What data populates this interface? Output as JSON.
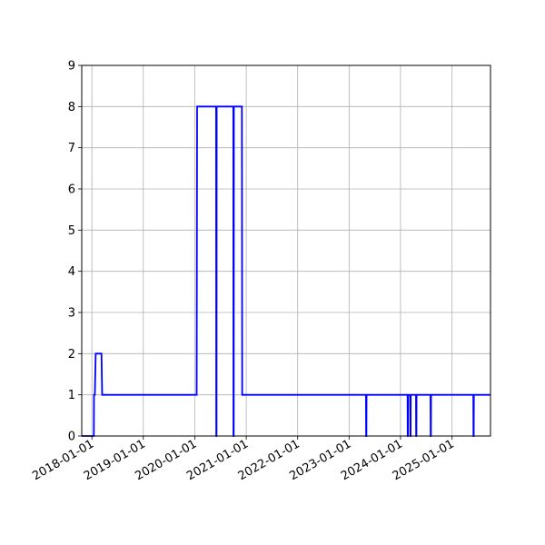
{
  "chart_data": {
    "type": "line",
    "title": "",
    "xlabel": "",
    "ylabel": "",
    "x_tick_labels": [
      "2018-01-01",
      "2019-01-01",
      "2020-01-01",
      "2021-01-01",
      "2022-01-01",
      "2023-01-01",
      "2024-01-01",
      "2025-01-01"
    ],
    "y_tick_labels": [
      "0",
      "1",
      "2",
      "3",
      "4",
      "5",
      "6",
      "7",
      "8",
      "9"
    ],
    "xlim": [
      "2017-10-21",
      "2025-10-01"
    ],
    "ylim": [
      0,
      9
    ],
    "grid": true,
    "legend": "none",
    "colors": {
      "series": "#0000ff",
      "grid": "#b0b0b0",
      "axes": "#000000"
    },
    "series": [
      {
        "x": [
          "2017-10-21",
          "2018-01-15",
          "2018-01-16",
          "2018-01-20",
          "2018-01-22",
          "2018-01-28",
          "2018-01-30",
          "2018-02-10",
          "2018-03-10",
          "2018-03-15",
          "2020-01-15",
          "2020-01-18",
          "2020-06-01",
          "2020-06-02",
          "2020-06-04",
          "2020-06-05",
          "2020-10-01",
          "2020-10-02",
          "2020-10-04",
          "2020-10-05",
          "2020-12-01",
          "2020-12-03",
          "2023-05-01",
          "2023-05-02",
          "2023-05-04",
          "2023-05-05",
          "2024-02-20",
          "2024-02-21",
          "2024-02-23",
          "2024-02-24",
          "2024-03-10",
          "2024-03-11",
          "2024-03-13",
          "2024-03-14",
          "2024-04-20",
          "2024-04-21",
          "2024-04-23",
          "2024-04-24",
          "2024-08-01",
          "2024-08-02",
          "2024-08-04",
          "2024-08-05",
          "2025-06-01",
          "2025-06-02",
          "2025-06-04",
          "2025-06-05",
          "2025-10-01"
        ],
        "y": [
          0,
          0,
          1,
          1,
          1,
          2,
          2,
          2,
          2,
          1,
          1,
          8,
          8,
          0,
          0,
          8,
          8,
          0,
          0,
          8,
          8,
          1,
          1,
          0,
          0,
          1,
          1,
          0,
          0,
          1,
          1,
          0,
          0,
          1,
          1,
          0,
          0,
          1,
          1,
          0,
          0,
          1,
          1,
          0,
          0,
          1,
          1
        ]
      }
    ]
  }
}
